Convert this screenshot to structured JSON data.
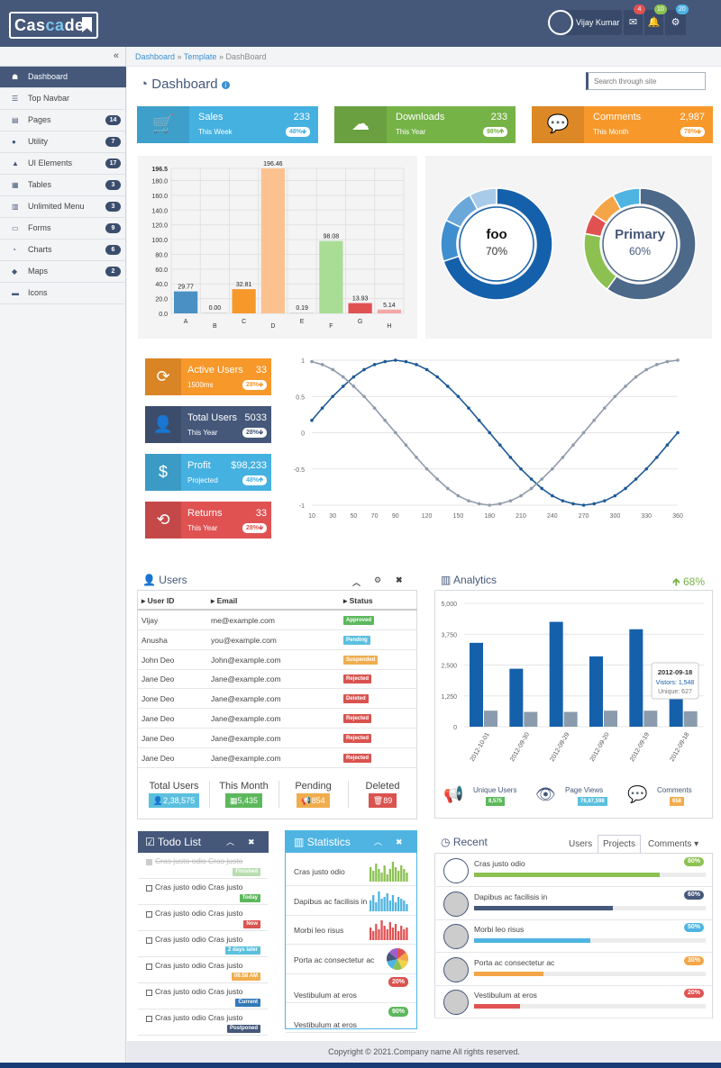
{
  "header": {
    "logo_a": "Cas",
    "logo_b": "ca",
    "logo_c": "de",
    "user_name": "Vijay Kumar",
    "mail_count": "4",
    "bell_count": "10",
    "cog_count": "20",
    "mail_icon": "envelope-icon",
    "bell_icon": "bell-icon",
    "cog_icon": "cogs-icon"
  },
  "sidebar": {
    "collapse_icon": "«",
    "items": [
      {
        "label": "Dashboard",
        "icon": "☗",
        "badge": ""
      },
      {
        "label": "Top Navbar",
        "icon": "☰",
        "badge": ""
      },
      {
        "label": "Pages",
        "icon": "▤",
        "badge": "14"
      },
      {
        "label": "Utility",
        "icon": "●",
        "badge": "7"
      },
      {
        "label": "UI Elements",
        "icon": "▲",
        "badge": "17"
      },
      {
        "label": "Tables",
        "icon": "▦",
        "badge": "3"
      },
      {
        "label": "Unlimited Menu",
        "icon": "▥",
        "badge": "3"
      },
      {
        "label": "Forms",
        "icon": "▭",
        "badge": "9"
      },
      {
        "label": "Charts",
        "icon": "◔",
        "badge": "6"
      },
      {
        "label": "Maps",
        "icon": "◆",
        "badge": "2"
      },
      {
        "label": "Icons",
        "icon": "▬",
        "badge": ""
      }
    ]
  },
  "breadcrumb": {
    "a": "Dashboard",
    "b": "Template",
    "c": "DashBoard",
    "sep": "»"
  },
  "page": {
    "title": "Dashboard",
    "search_placeholder": "Search through site"
  },
  "stats": [
    {
      "title": "Sales",
      "value": "233",
      "sub": "This Week",
      "pct": "48%",
      "dir": "🡻",
      "color": "#45b1e1",
      "pcolor": "#45b1e1",
      "icon": "🛒"
    },
    {
      "title": "Downloads",
      "value": "233",
      "sub": "This Year",
      "pct": "98%",
      "dir": "🡹",
      "color": "#76b347",
      "pcolor": "#76b347",
      "icon": "☁"
    },
    {
      "title": "Comments",
      "value": "2,987",
      "sub": "This Month",
      "pct": "78%",
      "dir": "🡻",
      "color": "#f7982b",
      "pcolor": "#f7982b",
      "icon": "💬"
    }
  ],
  "chart_data": [
    {
      "type": "bar",
      "categories": [
        "A",
        "B",
        "C",
        "D",
        "E",
        "F",
        "G",
        "H"
      ],
      "values": [
        29.77,
        0.0,
        32.81,
        196.46,
        0.19,
        98.08,
        13.93,
        5.14
      ],
      "ylim": [
        0,
        196.5
      ],
      "yticks": [
        "196.5",
        "180.0",
        "160.0",
        "140.0",
        "120.0",
        "100.0",
        "80.0",
        "60.0",
        "40.0",
        "20.0",
        "0.0"
      ],
      "colors": [
        "#4a90c4",
        "#d8d8d8",
        "#f7982b",
        "#fbc290",
        "#d8d8d8",
        "#a9dd95",
        "#e05252",
        "#f4a7a7"
      ],
      "grid": true
    },
    {
      "type": "pie",
      "donut": true,
      "title": "foo",
      "label": "70%",
      "values": [
        70,
        12,
        10,
        8
      ],
      "colors": [
        "#1560ab",
        "#3f8fcf",
        "#6ba8d9",
        "#a8cbe9"
      ]
    },
    {
      "type": "pie",
      "donut": true,
      "title": "Primary",
      "label": "60%",
      "values": [
        60,
        18,
        6,
        8,
        8
      ],
      "colors": [
        "#4d6989",
        "#8cc152",
        "#e05252",
        "#f4a548",
        "#4fb4e2"
      ]
    },
    {
      "type": "line",
      "x": [
        10,
        20,
        30,
        40,
        50,
        60,
        70,
        80,
        90,
        100,
        110,
        120,
        130,
        140,
        150,
        160,
        170,
        180,
        190,
        200,
        210,
        220,
        230,
        240,
        250,
        260,
        270,
        280,
        290,
        300,
        310,
        320,
        330,
        340,
        350,
        360
      ],
      "xticks": [
        "10",
        "30",
        "50",
        "70",
        "90",
        "120",
        "150",
        "180",
        "210",
        "240",
        "270",
        "300",
        "330",
        "360"
      ],
      "yticks": [
        "1",
        "0.5",
        "0",
        "-0.5",
        "-1"
      ],
      "ylim": [
        -1,
        1
      ],
      "grid": true,
      "series": [
        {
          "values": [
            0.17,
            0.34,
            0.5,
            0.64,
            0.77,
            0.87,
            0.94,
            0.98,
            1.0,
            0.98,
            0.94,
            0.87,
            0.77,
            0.64,
            0.5,
            0.34,
            0.17,
            0.0,
            -0.17,
            -0.34,
            -0.5,
            -0.64,
            -0.77,
            -0.87,
            -0.94,
            -0.98,
            -1.0,
            -0.98,
            -0.94,
            -0.87,
            -0.77,
            -0.64,
            -0.5,
            -0.34,
            -0.17,
            0.0
          ],
          "color": "#1e5a96"
        },
        {
          "values": [
            0.98,
            0.94,
            0.87,
            0.77,
            0.64,
            0.5,
            0.34,
            0.17,
            0.0,
            -0.17,
            -0.34,
            -0.5,
            -0.64,
            -0.77,
            -0.87,
            -0.94,
            -0.98,
            -1.0,
            -0.98,
            -0.94,
            -0.87,
            -0.77,
            -0.64,
            -0.5,
            -0.34,
            -0.17,
            0.0,
            0.17,
            0.34,
            0.5,
            0.64,
            0.77,
            0.87,
            0.94,
            0.98,
            1.0
          ],
          "color": "#8f9bab"
        }
      ]
    },
    {
      "type": "bar",
      "categories": [
        "2012-10-01",
        "2012-09-30",
        "2012-09-29",
        "2012-09-20",
        "2012-09-19",
        "2012-09-18"
      ],
      "yticks": [
        "5,000",
        "3,750",
        "2,500",
        "1,250",
        "0"
      ],
      "ylim": [
        0,
        5000
      ],
      "series": [
        {
          "name": "Vistors",
          "values": [
            3400,
            2350,
            4250,
            2850,
            3950,
            1548
          ],
          "color": "#1560ab"
        },
        {
          "name": "Unique",
          "values": [
            650,
            600,
            600,
            650,
            650,
            627
          ],
          "color": "#8a9bad"
        }
      ],
      "tooltip": {
        "title": "2012-09-18",
        "line1": "Vistors: 1,548",
        "line2": "Unique: 627"
      }
    }
  ],
  "mini_stats": [
    {
      "title": "Active Users",
      "value": "33",
      "sub": "1500ms",
      "pct": "28%",
      "dir": "🡻",
      "color": "#f7982b",
      "icon": "⟳"
    },
    {
      "title": "Total Users",
      "value": "5033",
      "sub": "This Year",
      "pct": "28%",
      "dir": "🡻",
      "color": "#45587a",
      "icon": "👤"
    },
    {
      "title": "Profit",
      "value": "$98,233",
      "sub": "Projected",
      "pct": "48%",
      "dir": "🡹",
      "color": "#45b1e1",
      "icon": "$"
    },
    {
      "title": "Returns",
      "value": "33",
      "sub": "This Year",
      "pct": "28%",
      "dir": "🡻",
      "color": "#e05252",
      "icon": "⟲"
    }
  ],
  "users": {
    "title": "Users",
    "cols": [
      "User ID",
      "Email",
      "Status"
    ],
    "rows": [
      {
        "id": "Vijay",
        "email": "me@example.com",
        "status": "Approved",
        "color": "#5cb85c"
      },
      {
        "id": "Anusha",
        "email": "you@example.com",
        "status": "Pending",
        "color": "#5bc0de"
      },
      {
        "id": "John Deo",
        "email": "John@example.com",
        "status": "Suspended",
        "color": "#f0ad4e"
      },
      {
        "id": "Jane Deo",
        "email": "Jane@example.com",
        "status": "Rejected",
        "color": "#d9534f"
      },
      {
        "id": "Jone Deo",
        "email": "Jane@example.com",
        "status": "Deleted",
        "color": "#d9534f"
      },
      {
        "id": "Jane Deo",
        "email": "Jane@example.com",
        "status": "Rejected",
        "color": "#d9534f"
      },
      {
        "id": "Jane Deo",
        "email": "Jane@example.com",
        "status": "Rejected",
        "color": "#d9534f"
      },
      {
        "id": "Jane Deo",
        "email": "Jane@example.com",
        "status": "Rejected",
        "color": "#d9534f"
      }
    ],
    "summary": [
      {
        "title": "Total Users",
        "value": "2,38,575",
        "icon": "👤",
        "color": "#5bc0de"
      },
      {
        "title": "This Month",
        "value": "5,435",
        "icon": "▦",
        "color": "#5cb85c"
      },
      {
        "title": "Pending",
        "value": "854",
        "icon": "📢",
        "color": "#f0ad4e"
      },
      {
        "title": "Deleted",
        "value": "89",
        "icon": "🗑",
        "color": "#d9534f"
      }
    ]
  },
  "analytics": {
    "title": "Analytics",
    "trend": "68%",
    "legend": [
      {
        "label": "Unique Users",
        "value": "8,575",
        "color": "#5cb85c",
        "icon": "📢"
      },
      {
        "label": "Page Views",
        "value": "76,67,598",
        "color": "#5bc0de",
        "icon": "👁"
      },
      {
        "label": "Comments",
        "value": "658",
        "color": "#f0ad4e",
        "icon": "💬"
      }
    ]
  },
  "todo": {
    "title": "Todo List",
    "items": [
      {
        "text": "Cras justo odio Cras justo",
        "tag": "Finished",
        "color": "#b8ddb0",
        "done": true
      },
      {
        "text": "Cras justo odio Cras justo",
        "tag": "Today",
        "color": "#5cb85c",
        "done": false
      },
      {
        "text": "Cras justo odio Cras justo",
        "tag": "Now",
        "color": "#d9534f",
        "done": false
      },
      {
        "text": "Cras justo odio Cras justo",
        "tag": "2 days later",
        "color": "#5bc0de",
        "done": false
      },
      {
        "text": "Cras justo odio Cras justo",
        "tag": "06:58 AM",
        "color": "#f0ad4e",
        "done": false
      },
      {
        "text": "Cras justo odio Cras justo",
        "tag": "Current",
        "color": "#337ab7",
        "done": false
      },
      {
        "text": "Cras justo odio Cras justo",
        "tag": "Postponed",
        "color": "#45587a",
        "done": false
      }
    ]
  },
  "statistics": {
    "title": "Statistics",
    "rows": [
      {
        "text": "Cras justo odio",
        "kind": "bars",
        "color": "#8cc152",
        "vals": [
          8,
          6,
          10,
          7,
          5,
          9,
          4,
          7,
          11,
          8,
          6,
          9,
          7,
          5
        ]
      },
      {
        "text": "Dapibus ac facilisis in",
        "kind": "bars",
        "color": "#4fb4e2",
        "vals": [
          6,
          9,
          5,
          11,
          7,
          8,
          10,
          6,
          9,
          5,
          8,
          7,
          6,
          4
        ]
      },
      {
        "text": "Morbi leo risus",
        "kind": "bars",
        "color": "#e05252",
        "vals": [
          7,
          5,
          9,
          6,
          11,
          8,
          6,
          10,
          7,
          9,
          5,
          8,
          6,
          7
        ]
      },
      {
        "text": "Porta ac consectetur ac",
        "kind": "pie"
      },
      {
        "text": "Vestibulum at eros",
        "kind": "badge",
        "badge": "20%",
        "color": "#d9534f"
      },
      {
        "text": "Vestibulum at eros",
        "kind": "badge",
        "badge": "90%",
        "color": "#5cb85c"
      }
    ]
  },
  "recent": {
    "title": "Recent",
    "tabs": [
      "Users",
      "Projects",
      "Comments ▾"
    ],
    "items": [
      {
        "text": "Cras justo odio",
        "pct": "80%",
        "val": 80,
        "color": "#8cc152"
      },
      {
        "text": "Dapibus ac facilisis in",
        "pct": "60%",
        "val": 60,
        "color": "#45587a"
      },
      {
        "text": "Morbi leo risus",
        "pct": "50%",
        "val": 50,
        "color": "#4fb4e2"
      },
      {
        "text": "Porta ac consectetur ac",
        "pct": "30%",
        "val": 30,
        "color": "#f4a548"
      },
      {
        "text": "Vestibulum at eros",
        "pct": "20%",
        "val": 20,
        "color": "#e05252"
      }
    ]
  },
  "footer": {
    "text": "Copyright © 2021.Company name All rights reserved."
  }
}
